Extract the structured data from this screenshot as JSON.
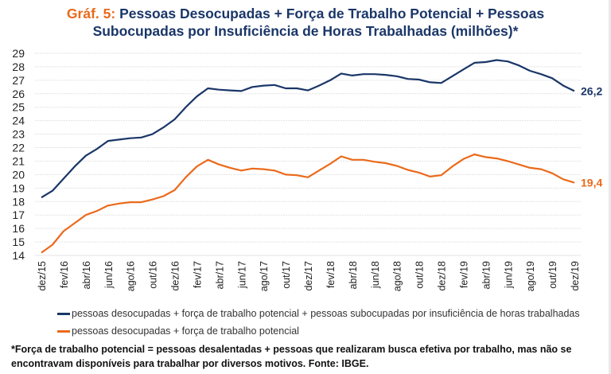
{
  "chart_data": {
    "type": "line",
    "title_prefix": "Gráf. 5:",
    "title": "Pessoas Desocupadas + Força de Trabalho Potencial + Pessoas Subocupadas por Insuficiência de Horas Trabalhadas (milhões)*",
    "title_line1": "Pessoas Desocupadas + Força de Trabalho Potencial + Pessoas",
    "title_line2": "Subocupadas por Insuficiência de Horas Trabalhadas (milhões)*",
    "xlabel": "",
    "ylabel": "",
    "ylim": [
      14,
      29
    ],
    "yticks": [
      14,
      15,
      16,
      17,
      18,
      19,
      20,
      21,
      22,
      23,
      24,
      25,
      26,
      27,
      28,
      29
    ],
    "grid": true,
    "legend_position": "bottom",
    "x": [
      "dez/15",
      "jan/16",
      "fev/16",
      "mar/16",
      "abr/16",
      "mai/16",
      "jun/16",
      "jul/16",
      "ago/16",
      "set/16",
      "out/16",
      "nov/16",
      "dez/16",
      "jan/17",
      "fev/17",
      "mar/17",
      "abr/17",
      "mai/17",
      "jun/17",
      "jul/17",
      "ago/17",
      "set/17",
      "out/17",
      "nov/17",
      "dez/17",
      "jan/18",
      "fev/18",
      "mar/18",
      "abr/18",
      "mai/18",
      "jun/18",
      "jul/18",
      "ago/18",
      "set/18",
      "out/18",
      "nov/18",
      "dez/18",
      "jan/19",
      "fev/19",
      "mar/19",
      "abr/19",
      "mai/19",
      "jun/19",
      "jul/19",
      "ago/19",
      "set/19",
      "out/19",
      "nov/19",
      "dez/19"
    ],
    "xtick_labels": [
      "dez/15",
      "fev/16",
      "abr/16",
      "jun/16",
      "ago/16",
      "out/16",
      "dez/16",
      "fev/17",
      "abr/17",
      "jun/17",
      "ago/17",
      "out/17",
      "dez/17",
      "fev/18",
      "abr/18",
      "jun/18",
      "ago/18",
      "out/18",
      "dez/18",
      "fev/19",
      "abr/19",
      "jun/19",
      "ago/19",
      "out/19",
      "dez/19"
    ],
    "series": [
      {
        "name": "pessoas desocupadas + força de trabalho potencial + pessoas subocupadas por insuficiência de horas trabalhadas",
        "color": "#1a3668",
        "end_label": "26,2",
        "values": [
          18.3,
          18.8,
          19.7,
          20.6,
          21.4,
          21.9,
          22.5,
          22.6,
          22.7,
          22.75,
          23.0,
          23.5,
          24.1,
          25.0,
          25.8,
          26.4,
          26.3,
          26.25,
          26.2,
          26.5,
          26.6,
          26.65,
          26.4,
          26.4,
          26.25,
          26.6,
          27.0,
          27.5,
          27.35,
          27.45,
          27.45,
          27.4,
          27.3,
          27.1,
          27.05,
          26.85,
          26.8,
          27.3,
          27.8,
          28.3,
          28.35,
          28.5,
          28.4,
          28.1,
          27.7,
          27.45,
          27.15,
          26.6,
          26.2
        ]
      },
      {
        "name": "pessoas desocupadas + força de trabalho potencial",
        "color": "#ea6a1b",
        "end_label": "19,4",
        "values": [
          14.2,
          14.8,
          15.8,
          16.4,
          17.0,
          17.3,
          17.7,
          17.85,
          17.95,
          17.95,
          18.15,
          18.4,
          18.85,
          19.8,
          20.6,
          21.1,
          20.75,
          20.5,
          20.3,
          20.45,
          20.4,
          20.3,
          20.0,
          19.95,
          19.8,
          20.3,
          20.8,
          21.35,
          21.1,
          21.1,
          20.95,
          20.85,
          20.65,
          20.35,
          20.15,
          19.85,
          19.95,
          20.6,
          21.15,
          21.5,
          21.3,
          21.2,
          21.0,
          20.75,
          20.5,
          20.4,
          20.1,
          19.65,
          19.4
        ]
      }
    ],
    "footnote": "*Força de trabalho potencial = pessoas desalentadas + pessoas que realizaram busca efetiva por trabalho, mas não se encontravam disponíveis para trabalhar por diversos motivos. Fonte: IBGE.",
    "footnote_line1": "*Força de trabalho potencial = pessoas desalentadas + pessoas que realizaram busca efetiva por trabalho, mas não se",
    "footnote_line2": "encontravam disponíveis para trabalhar por diversos motivos. Fonte: IBGE."
  }
}
